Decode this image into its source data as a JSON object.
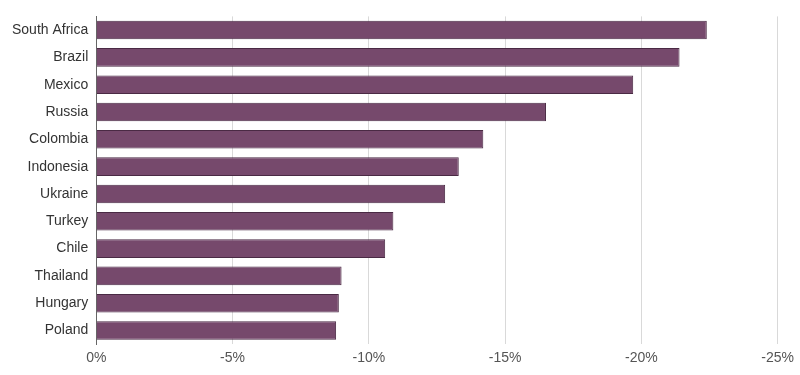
{
  "chart_data": {
    "type": "bar",
    "orientation": "horizontal",
    "categories": [
      "South Africa",
      "Brazil",
      "Mexico",
      "Russia",
      "Colombia",
      "Indonesia",
      "Ukraine",
      "Turkey",
      "Chile",
      "Thailand",
      "Hungary",
      "Poland"
    ],
    "values": [
      -22.4,
      -21.4,
      -19.7,
      -16.5,
      -14.2,
      -13.3,
      -12.8,
      -10.9,
      -10.6,
      -9.0,
      -8.9,
      -8.8
    ],
    "color": "#76496c",
    "xlim": [
      -25,
      0
    ],
    "xticks": [
      {
        "value": 0,
        "label": "0%"
      },
      {
        "value": -5,
        "label": "-5%"
      },
      {
        "value": -10,
        "label": "-10%"
      },
      {
        "value": -15,
        "label": "-15%"
      },
      {
        "value": -20,
        "label": "-20%"
      },
      {
        "value": -25,
        "label": "-25%"
      }
    ],
    "grid": true
  }
}
